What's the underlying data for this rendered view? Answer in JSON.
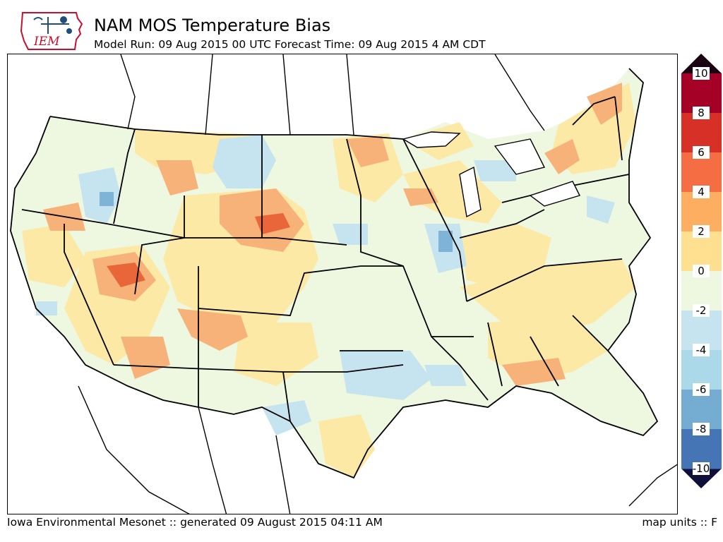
{
  "header": {
    "logo_text": "IEM",
    "title": "NAM MOS Temperature Bias",
    "subtitle": "Model Run: 09 Aug 2015 00 UTC Forecast Time: 09 Aug 2015 4 AM CDT"
  },
  "footer": {
    "credit": "Iowa Environmental Mesonet :: generated 09 August 2015 04:11 AM",
    "units": "map units :: F"
  },
  "colorbar": {
    "ticks": [
      "10",
      "8",
      "6",
      "4",
      "2",
      "0",
      "-2",
      "-4",
      "-6",
      "-8",
      "-10"
    ],
    "bands": [
      "#67001f",
      "#b2182b",
      "#d6604d",
      "#f4a582",
      "#fdd8a0",
      "#fff5c8",
      "#e9f5dc",
      "#c5e3ee",
      "#92c5de",
      "#4393c3",
      "#2166ac",
      "#313695"
    ]
  },
  "map": {
    "region": "Continental United States",
    "fill_colors": {
      "strong_warm": "#e8663a",
      "warm": "#f7b27a",
      "slight_warm": "#fde9a6",
      "neutral": "#eef7e0",
      "slight_cool": "#c6e4ef",
      "cool": "#7fb3d8",
      "state_line": "#000000"
    }
  }
}
